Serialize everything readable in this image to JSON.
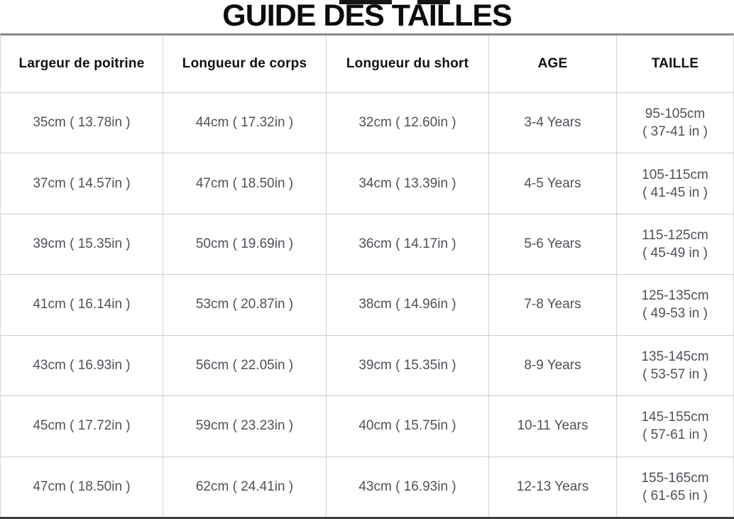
{
  "title": "GUIDE DES TAILLES",
  "table": {
    "headers": [
      "Largeur de poitrine",
      "Longueur de corps",
      "Longueur du short",
      "AGE",
      "TAILLE"
    ],
    "rows": [
      {
        "chest": "35cm ( 13.78in )",
        "body": "44cm ( 17.32in )",
        "short": "32cm ( 12.60in )",
        "age": "3-4 Years",
        "height_cm": "95-105cm",
        "height_in": "( 37-41 in )"
      },
      {
        "chest": "37cm ( 14.57in )",
        "body": "47cm ( 18.50in )",
        "short": "34cm ( 13.39in )",
        "age": "4-5 Years",
        "height_cm": "105-115cm",
        "height_in": "( 41-45 in )"
      },
      {
        "chest": "39cm ( 15.35in )",
        "body": "50cm ( 19.69in )",
        "short": "36cm ( 14.17in )",
        "age": "5-6 Years",
        "height_cm": "115-125cm",
        "height_in": "( 45-49 in )"
      },
      {
        "chest": "41cm ( 16.14in )",
        "body": "53cm ( 20.87in )",
        "short": "38cm ( 14.96in )",
        "age": "7-8 Years",
        "height_cm": "125-135cm",
        "height_in": "( 49-53 in )"
      },
      {
        "chest": "43cm ( 16.93in )",
        "body": "56cm ( 22.05in )",
        "short": "39cm ( 15.35in )",
        "age": "8-9 Years",
        "height_cm": "135-145cm",
        "height_in": "( 53-57 in )"
      },
      {
        "chest": "45cm ( 17.72in )",
        "body": "59cm ( 23.23in )",
        "short": "40cm ( 15.75in )",
        "age": "10-11 Years",
        "height_cm": "145-155cm",
        "height_in": "( 57-61 in )"
      },
      {
        "chest": "47cm ( 18.50in )",
        "body": "62cm ( 24.41in )",
        "short": "43cm ( 16.93in )",
        "age": "12-13 Years",
        "height_cm": "155-165cm",
        "height_in": "( 61-65 in )"
      }
    ]
  },
  "colors": {
    "title_text": "#0c0c0c",
    "header_text": "#111111",
    "cell_text": "#50505a",
    "grid_line": "#cccccc",
    "title_rule": "#8a8a8a",
    "bottom_rule": "#3d3d3d",
    "background": "#ffffff"
  }
}
